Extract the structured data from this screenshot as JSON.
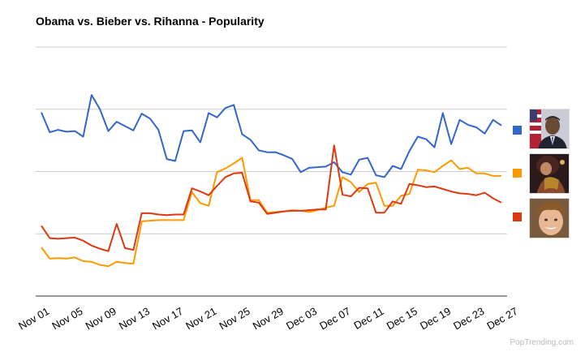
{
  "chart_data": {
    "type": "line",
    "title": "Obama vs. Bieber vs. Rihanna - Popularity",
    "xlabel": "",
    "ylabel": "",
    "grid": true,
    "legend": "right",
    "tick_labels": [
      "Nov 01",
      "Nov 05",
      "Nov 09",
      "Nov 13",
      "Nov 17",
      "Nov 21",
      "Nov 25",
      "Nov 29",
      "Dec 03",
      "Dec 07",
      "Dec 11",
      "Dec 15",
      "Dec 19",
      "Dec 23",
      "Dec 27"
    ],
    "ylim": [
      0,
      4
    ],
    "series": [
      {
        "color": "#3366cc",
        "values": [
          2.95,
          2.63,
          2.67,
          2.64,
          2.65,
          2.56,
          3.23,
          3.0,
          2.65,
          2.8,
          2.73,
          2.66,
          2.93,
          2.85,
          2.67,
          2.2,
          2.17,
          2.65,
          2.66,
          2.47,
          2.94,
          2.87,
          3.02,
          3.07,
          2.6,
          2.51,
          2.34,
          2.31,
          2.31,
          2.26,
          2.2,
          1.99,
          2.06,
          2.07,
          2.08,
          2.15,
          1.99,
          1.95,
          2.19,
          2.22,
          1.94,
          1.91,
          2.09,
          2.04,
          2.33,
          2.56,
          2.52,
          2.39,
          2.94,
          2.44,
          2.83,
          2.75,
          2.71,
          2.61,
          2.83,
          2.74
        ]
      },
      {
        "color": "#ff9900",
        "values": [
          0.78,
          0.6,
          0.61,
          0.6,
          0.62,
          0.56,
          0.55,
          0.5,
          0.48,
          0.55,
          0.53,
          0.52,
          1.2,
          1.21,
          1.22,
          1.22,
          1.22,
          1.22,
          1.67,
          1.49,
          1.45,
          1.99,
          2.05,
          2.13,
          2.22,
          1.54,
          1.54,
          1.34,
          1.35,
          1.36,
          1.38,
          1.37,
          1.35,
          1.38,
          1.42,
          1.45,
          1.91,
          1.83,
          1.67,
          1.8,
          1.82,
          1.45,
          1.45,
          1.61,
          1.64,
          2.03,
          2.02,
          1.99,
          2.09,
          2.18,
          2.04,
          2.06,
          1.97,
          1.97,
          1.93,
          1.93
        ]
      },
      {
        "color": "#dc3912",
        "values": [
          1.13,
          0.93,
          0.92,
          0.93,
          0.94,
          0.89,
          0.81,
          0.76,
          0.72,
          1.16,
          0.77,
          0.74,
          1.33,
          1.33,
          1.31,
          1.3,
          1.31,
          1.31,
          1.73,
          1.68,
          1.62,
          1.77,
          1.91,
          1.97,
          1.98,
          1.52,
          1.5,
          1.32,
          1.34,
          1.36,
          1.37,
          1.37,
          1.38,
          1.39,
          1.39,
          2.42,
          1.63,
          1.6,
          1.74,
          1.73,
          1.34,
          1.34,
          1.52,
          1.48,
          1.8,
          1.78,
          1.75,
          1.76,
          1.72,
          1.68,
          1.65,
          1.64,
          1.62,
          1.66,
          1.57,
          1.5
        ]
      }
    ]
  },
  "legend": {
    "items": [
      {
        "name": "obama",
        "color": "#3366cc"
      },
      {
        "name": "rihanna",
        "color": "#ff9900"
      },
      {
        "name": "bieber",
        "color": "#dc3912"
      }
    ]
  },
  "watermark": "PopTrending.com"
}
